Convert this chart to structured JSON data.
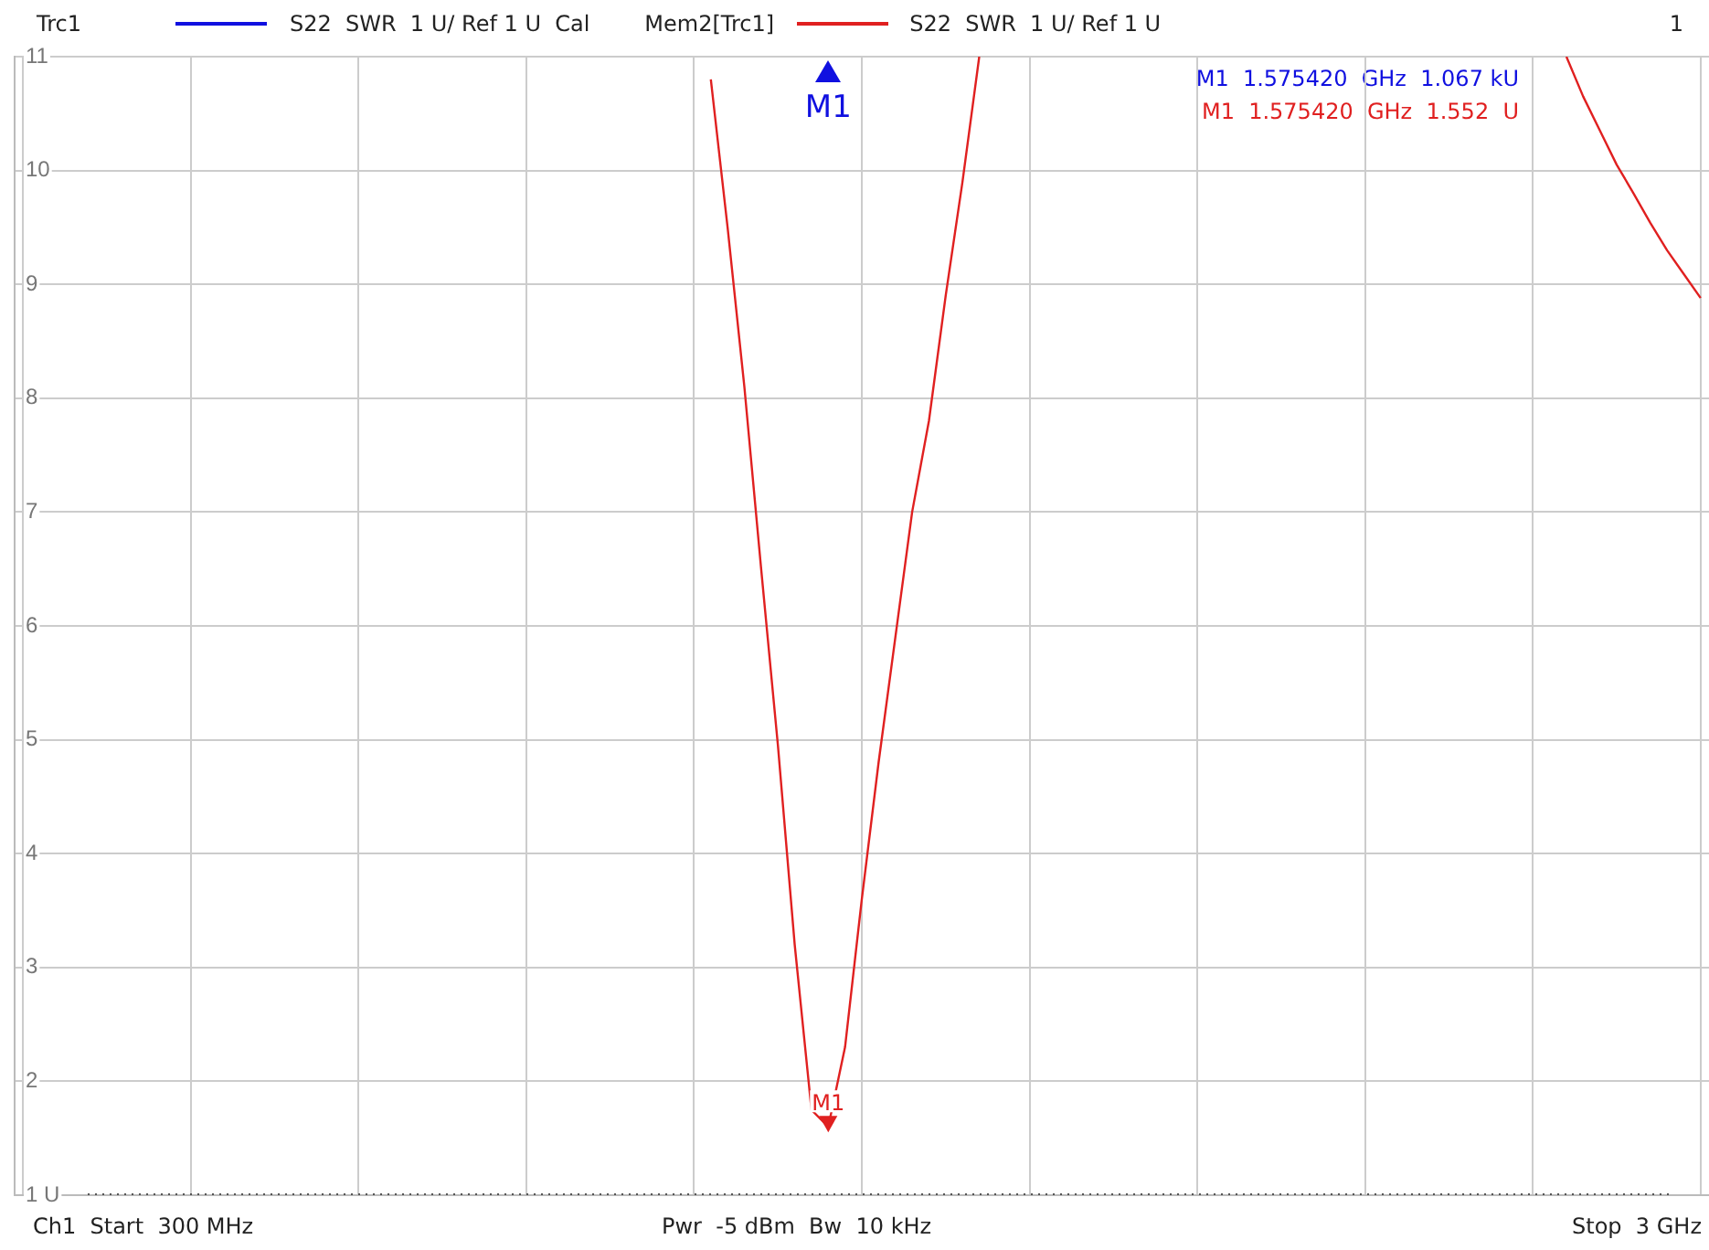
{
  "chart_data": {
    "type": "line",
    "title": "Trc1",
    "categories": [
      null,
      null,
      null,
      null,
      null,
      null,
      null,
      null,
      null,
      null,
      null,
      null,
      null,
      null,
      null,
      null,
      null,
      null,
      null,
      null,
      null,
      null,
      null,
      null,
      null,
      null,
      null,
      null,
      null,
      null,
      null,
      null,
      null,
      null,
      null,
      null,
      null,
      null,
      null,
      null,
      null,
      null,
      null,
      null,
      null,
      null,
      null,
      null,
      null,
      null,
      null,
      null,
      null,
      null,
      null,
      null,
      null,
      null,
      null,
      null,
      null,
      null,
      null,
      null,
      null,
      null,
      null,
      null,
      null,
      null,
      null,
      null,
      null,
      null,
      null,
      null,
      null,
      null,
      null,
      null,
      null,
      null,
      null,
      null,
      null,
      null,
      null,
      null,
      null,
      null,
      null,
      null,
      null,
      null,
      null,
      null,
      null,
      null,
      null,
      null,
      null
    ],
    "series": [
      {
        "name": "S22  SWR  1 U/ Ref 1 U  Cal",
        "color": "#1010e0",
        "values": [
          null,
          null,
          null,
          null,
          null,
          null,
          null,
          null,
          null,
          null,
          null,
          null,
          null,
          null,
          null,
          null,
          null,
          null,
          null,
          null,
          null,
          null,
          null,
          null,
          null,
          null,
          null,
          null,
          null,
          null,
          null,
          null,
          null,
          null,
          null,
          null,
          null,
          null,
          null,
          null,
          null,
          null,
          null,
          null,
          null,
          null,
          null,
          null,
          null,
          null,
          null,
          null,
          null,
          null,
          null,
          null,
          null,
          null,
          null,
          null,
          null,
          null,
          null,
          null,
          null,
          null,
          null,
          null,
          null,
          null,
          null,
          null,
          null,
          null,
          null,
          null,
          null,
          null,
          null,
          null,
          null,
          null,
          null,
          null,
          null,
          null,
          null,
          null,
          null,
          null,
          null,
          null,
          null,
          null,
          null,
          null,
          null,
          null,
          null,
          null,
          null
        ]
      },
      {
        "name": "S22  SWR  1 U/ Ref 1 U",
        "color": "#e02020",
        "values": [
          null,
          null,
          null,
          null,
          null,
          null,
          null,
          null,
          null,
          null,
          null,
          null,
          null,
          null,
          null,
          null,
          null,
          null,
          null,
          null,
          null,
          null,
          null,
          null,
          null,
          null,
          null,
          null,
          null,
          null,
          null,
          null,
          null,
          null,
          null,
          null,
          null,
          null,
          null,
          null,
          null,
          10.8,
          9.5,
          8.1,
          6.5,
          4.95,
          3.2,
          1.75,
          1.6,
          2.3,
          3.6,
          4.8,
          5.9,
          7.0,
          7.8,
          8.9,
          9.9,
          11,
          null,
          null,
          null,
          null,
          null,
          null,
          null,
          null,
          null,
          null,
          null,
          null,
          null,
          null,
          null,
          null,
          null,
          null,
          null,
          null,
          null,
          null,
          null,
          null,
          null,
          null,
          null,
          null,
          null,
          null,
          null,
          null,
          null,
          null,
          11,
          10.65,
          10.35,
          10.05,
          9.8,
          9.54,
          9.3,
          9.09,
          8.88
        ]
      }
    ],
    "ylim": [
      1,
      11
    ],
    "yticks": [
      {
        "value": 1,
        "label": "1 U"
      },
      2,
      3,
      4,
      5,
      6,
      7,
      8,
      9,
      10,
      11
    ],
    "tick_labels": "y",
    "grid": true,
    "legend": "top",
    "marker": "none",
    "line_style": "solid",
    "ref_lines": [
      {
        "axis": "y",
        "value": 1,
        "line_style": "dotted",
        "color": "#555555"
      }
    ],
    "annotations": [
      "Mem2[Trc1]",
      "1",
      "M1  1.575420  GHz  1.067 kU",
      "M1  1.575420  GHz  1.552  U",
      "Ch1  Start  300 MHz",
      "Pwr  -5 dBm  Bw  10 kHz",
      "Stop  3 GHz",
      {
        "text": "M1",
        "y": 1.552
      },
      {
        "text": "M1"
      }
    ]
  }
}
